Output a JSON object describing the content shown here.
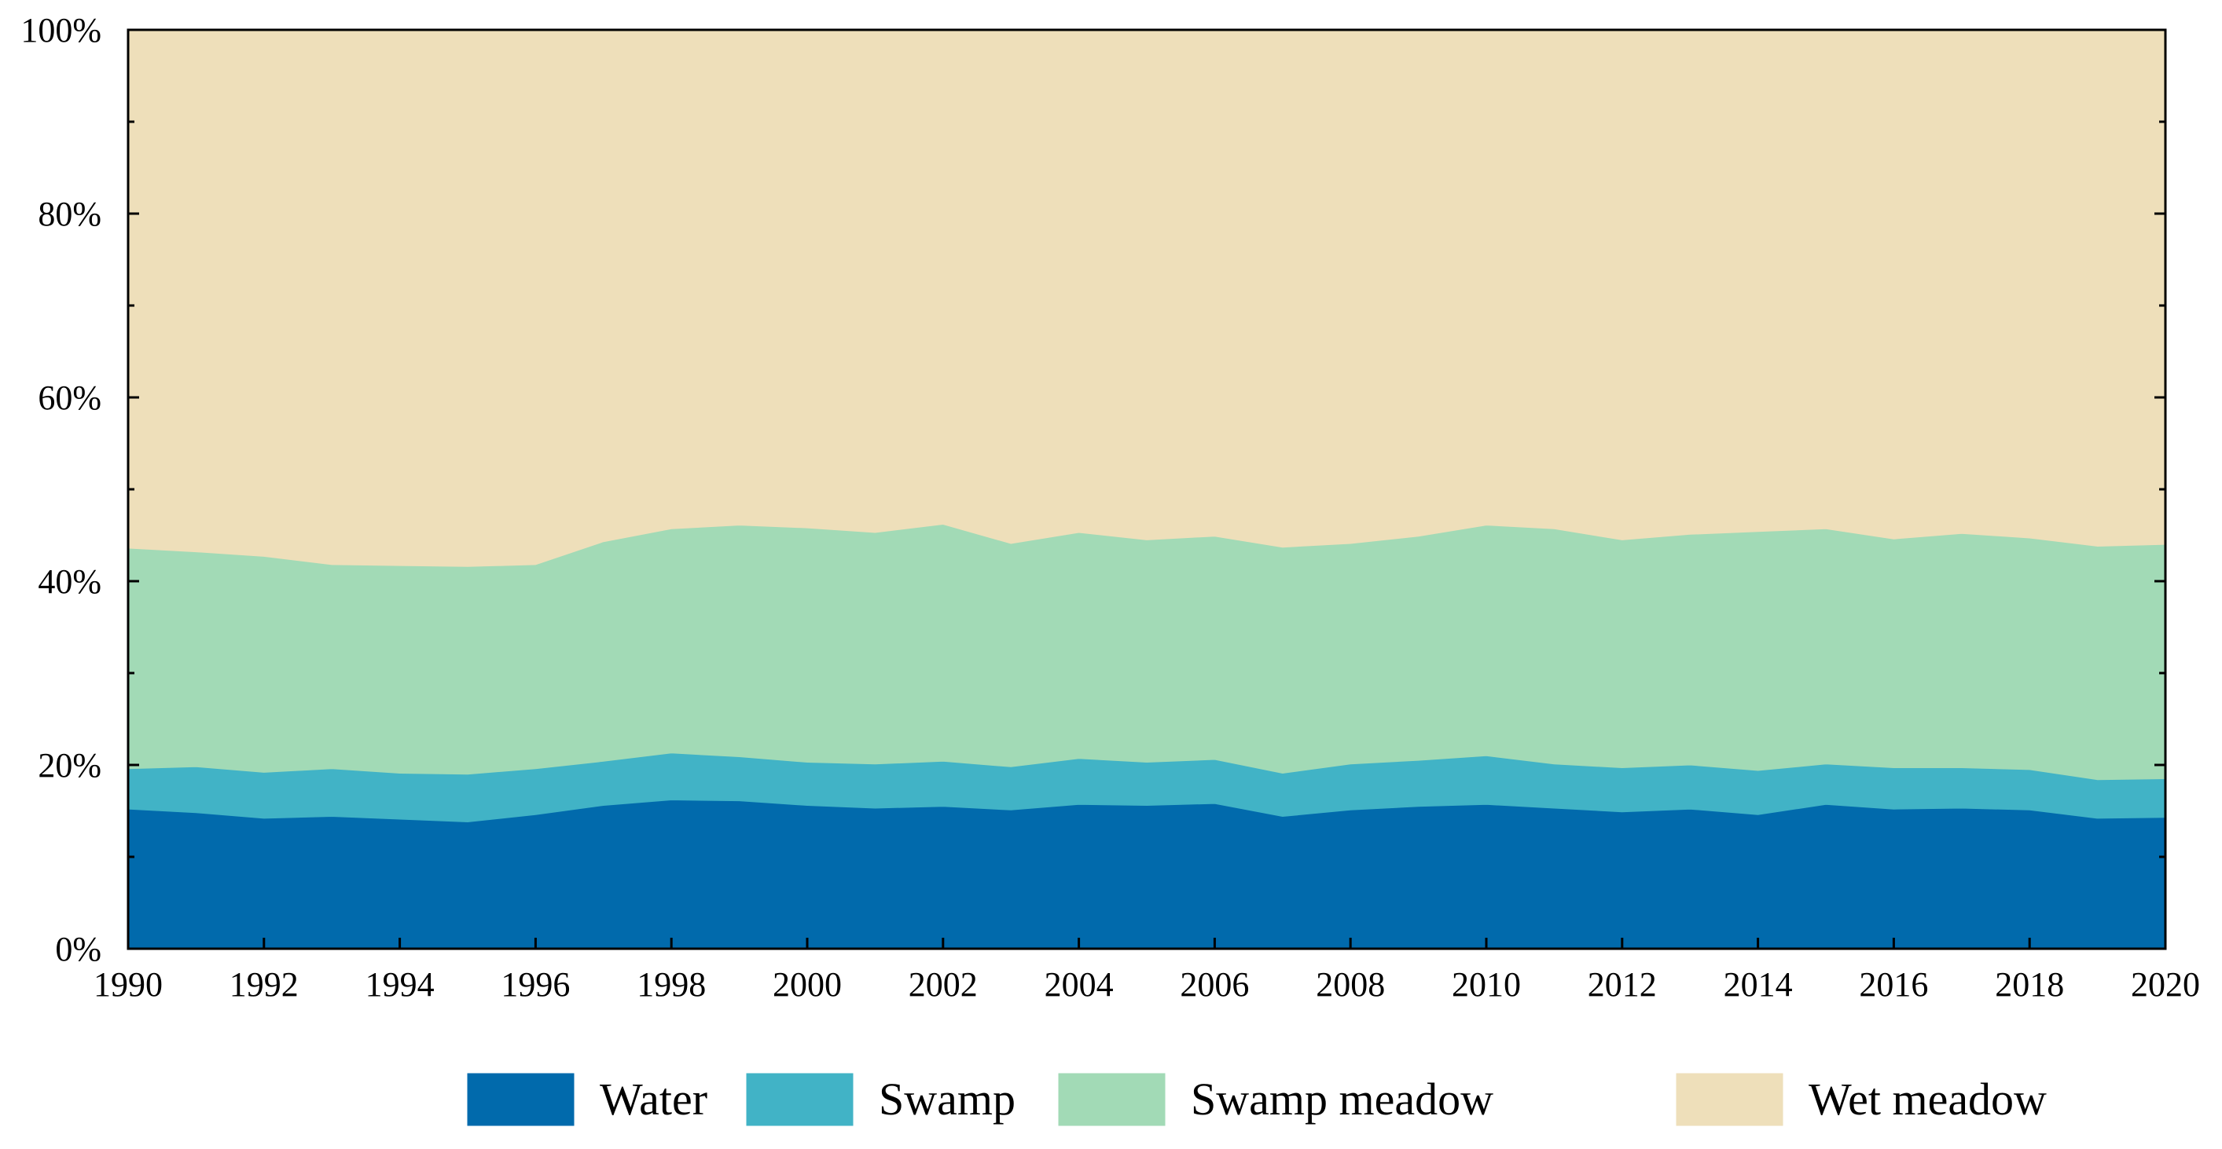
{
  "chart_data": {
    "type": "area",
    "stacked": true,
    "normalized": true,
    "title": "",
    "xlabel": "",
    "ylabel": "",
    "x": [
      1990,
      1991,
      1992,
      1993,
      1994,
      1995,
      1996,
      1997,
      1998,
      1999,
      2000,
      2001,
      2002,
      2003,
      2004,
      2005,
      2006,
      2007,
      2008,
      2009,
      2010,
      2011,
      2012,
      2013,
      2014,
      2015,
      2016,
      2017,
      2018,
      2019,
      2020
    ],
    "xlim": [
      1990,
      2020
    ],
    "ylim": [
      0,
      100
    ],
    "x_ticks": [
      1990,
      1992,
      1994,
      1996,
      1998,
      2000,
      2002,
      2004,
      2006,
      2008,
      2010,
      2012,
      2014,
      2016,
      2018,
      2020
    ],
    "x_tick_labels": [
      "1990",
      "1992",
      "1994",
      "1996",
      "1998",
      "2000",
      "2002",
      "2004",
      "2006",
      "2008",
      "2010",
      "2012",
      "2014",
      "2016",
      "2018",
      "2020"
    ],
    "y_ticks": [
      0,
      20,
      40,
      60,
      80,
      100
    ],
    "y_tick_labels": [
      "0%",
      "20%",
      "40%",
      "60%",
      "80%",
      "100%"
    ],
    "grid": false,
    "legend_position": "bottom",
    "series": [
      {
        "name": "Water",
        "color": "#016AAC",
        "values": [
          15.2,
          14.8,
          14.2,
          14.4,
          14.1,
          13.8,
          14.6,
          15.6,
          16.2,
          16.1,
          15.6,
          15.3,
          15.5,
          15.1,
          15.7,
          15.6,
          15.8,
          14.4,
          15.1,
          15.5,
          15.7,
          15.3,
          14.9,
          15.2,
          14.6,
          15.7,
          15.2,
          15.3,
          15.1,
          14.2,
          14.3
        ]
      },
      {
        "name": "Swamp",
        "color": "#41B3C6",
        "values": [
          4.4,
          5.0,
          5.0,
          5.2,
          5.0,
          5.2,
          5.0,
          4.8,
          5.1,
          4.8,
          4.7,
          4.8,
          4.9,
          4.7,
          5.0,
          4.7,
          4.8,
          4.7,
          5.0,
          5.0,
          5.3,
          4.8,
          4.8,
          4.8,
          4.8,
          4.4,
          4.5,
          4.4,
          4.4,
          4.2,
          4.2
        ]
      },
      {
        "name": "Swamp meadow",
        "color": "#A2DAB6",
        "values": [
          24.0,
          23.4,
          23.5,
          22.2,
          22.6,
          22.6,
          22.2,
          23.9,
          24.4,
          25.2,
          25.5,
          25.2,
          25.8,
          24.3,
          24.6,
          24.2,
          24.3,
          24.6,
          24.0,
          24.4,
          25.1,
          25.6,
          24.8,
          25.1,
          26.0,
          25.6,
          24.9,
          25.5,
          25.2,
          25.4,
          25.5
        ]
      },
      {
        "name": "Wet meadow",
        "color": "#EEDFBA",
        "values": [
          56.4,
          56.8,
          57.3,
          58.2,
          58.3,
          58.4,
          58.2,
          55.7,
          54.3,
          53.9,
          54.2,
          54.7,
          53.8,
          55.9,
          54.7,
          55.5,
          55.1,
          56.3,
          55.9,
          55.1,
          53.9,
          54.3,
          55.5,
          54.9,
          54.6,
          54.3,
          55.4,
          54.8,
          55.3,
          56.2,
          56.0
        ]
      }
    ]
  }
}
